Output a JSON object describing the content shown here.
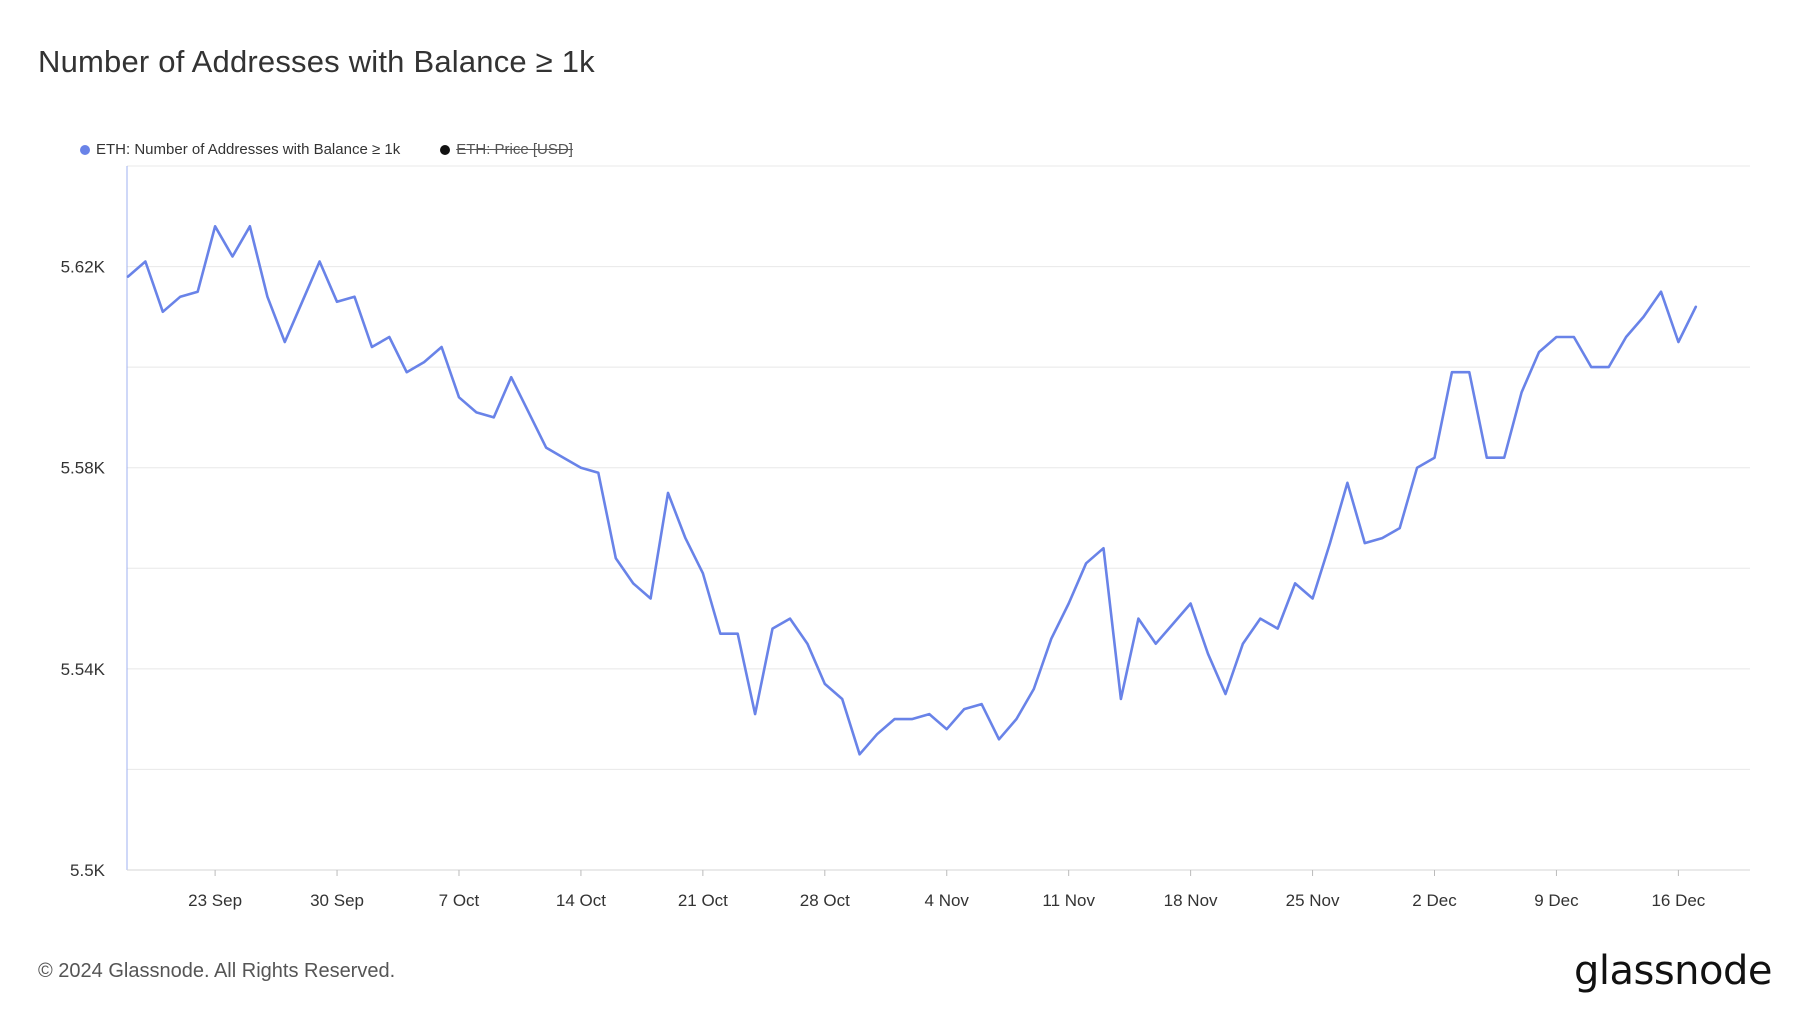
{
  "header": {
    "title": "Number of Addresses with Balance ≥ 1k"
  },
  "legend": [
    {
      "label": "ETH: Number of Addresses with Balance ≥ 1k",
      "color": "#6983e8",
      "active": true
    },
    {
      "label": "ETH: Price [USD]",
      "color": "#111111",
      "active": false
    }
  ],
  "footer": {
    "copyright": "© 2024 Glassnode. All Rights Reserved.",
    "logo": "glassnode"
  },
  "chart_data": {
    "type": "line",
    "title": "Number of Addresses with Balance ≥ 1k",
    "xlabel": "",
    "ylabel": "",
    "ylim": [
      5500,
      5640
    ],
    "yticks": [
      5500,
      5540,
      5580,
      5620
    ],
    "ytick_labels": [
      "5.5K",
      "5.54K",
      "5.58K",
      "5.62K"
    ],
    "xticks": [
      "23 Sep",
      "30 Sep",
      "7 Oct",
      "14 Oct",
      "21 Oct",
      "28 Oct",
      "4 Nov",
      "11 Nov",
      "18 Nov",
      "25 Nov",
      "2 Dec",
      "9 Dec",
      "16 Dec"
    ],
    "x_start": "2024-09-18",
    "grid": true,
    "legend_position": "top-left",
    "series": [
      {
        "name": "ETH: Number of Addresses with Balance ≥ 1k",
        "color": "#6983e8",
        "x": [
          "2024-09-18",
          "2024-09-19",
          "2024-09-20",
          "2024-09-21",
          "2024-09-22",
          "2024-09-23",
          "2024-09-24",
          "2024-09-25",
          "2024-09-26",
          "2024-09-27",
          "2024-09-28",
          "2024-09-29",
          "2024-09-30",
          "2024-10-01",
          "2024-10-02",
          "2024-10-03",
          "2024-10-04",
          "2024-10-05",
          "2024-10-06",
          "2024-10-07",
          "2024-10-08",
          "2024-10-09",
          "2024-10-10",
          "2024-10-11",
          "2024-10-12",
          "2024-10-13",
          "2024-10-14",
          "2024-10-15",
          "2024-10-16",
          "2024-10-17",
          "2024-10-18",
          "2024-10-19",
          "2024-10-20",
          "2024-10-21",
          "2024-10-22",
          "2024-10-23",
          "2024-10-24",
          "2024-10-25",
          "2024-10-26",
          "2024-10-27",
          "2024-10-28",
          "2024-10-29",
          "2024-10-30",
          "2024-10-31",
          "2024-11-01",
          "2024-11-02",
          "2024-11-03",
          "2024-11-04",
          "2024-11-05",
          "2024-11-06",
          "2024-11-07",
          "2024-11-08",
          "2024-11-09",
          "2024-11-10",
          "2024-11-11",
          "2024-11-12",
          "2024-11-13",
          "2024-11-14",
          "2024-11-15",
          "2024-11-16",
          "2024-11-17",
          "2024-11-18",
          "2024-11-19",
          "2024-11-20",
          "2024-11-21",
          "2024-11-22",
          "2024-11-23",
          "2024-11-24",
          "2024-11-25",
          "2024-11-26",
          "2024-11-27",
          "2024-11-28",
          "2024-11-29",
          "2024-11-30",
          "2024-12-01",
          "2024-12-02",
          "2024-12-03",
          "2024-12-04",
          "2024-12-05",
          "2024-12-06",
          "2024-12-07",
          "2024-12-08",
          "2024-12-09",
          "2024-12-10",
          "2024-12-11",
          "2024-12-12",
          "2024-12-13",
          "2024-12-14",
          "2024-12-15",
          "2024-12-16",
          "2024-12-17"
        ],
        "values": [
          5618,
          5621,
          5611,
          5614,
          5615,
          5628,
          5622,
          5628,
          5614,
          5605,
          5613,
          5621,
          5613,
          5614,
          5604,
          5606,
          5599,
          5601,
          5604,
          5594,
          5591,
          5590,
          5598,
          5591,
          5584,
          5582,
          5580,
          5579,
          5562,
          5557,
          5554,
          5575,
          5566,
          5559,
          5547,
          5547,
          5531,
          5548,
          5550,
          5545,
          5537,
          5534,
          5523,
          5527,
          5530,
          5530,
          5531,
          5528,
          5532,
          5533,
          5526,
          5530,
          5536,
          5546,
          5553,
          5561,
          5564,
          5534,
          5550,
          5545,
          5549,
          5553,
          5543,
          5535,
          5545,
          5550,
          5548,
          5557,
          5554,
          5565,
          5577,
          5565,
          5566,
          5568,
          5580,
          5582,
          5599,
          5599,
          5582,
          5582,
          5595,
          5603,
          5606,
          5606,
          5600,
          5600,
          5606,
          5610,
          5615,
          5605,
          5612
        ]
      }
    ]
  }
}
